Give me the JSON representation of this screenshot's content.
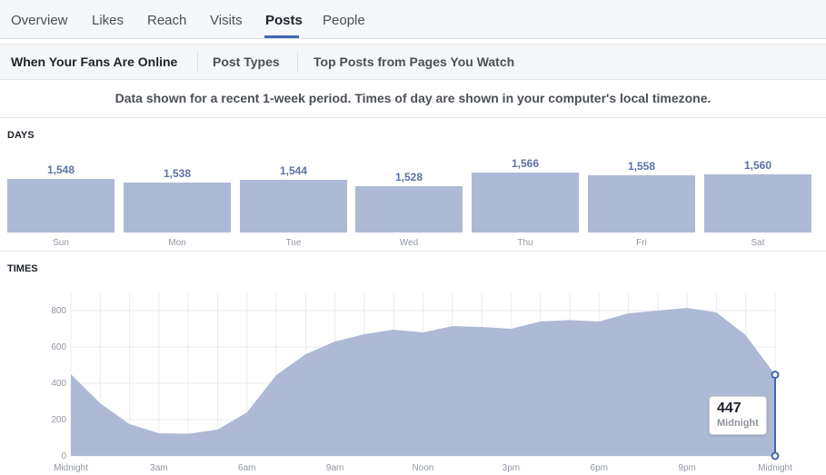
{
  "nav": {
    "tabs": [
      {
        "label": "Overview",
        "active": false
      },
      {
        "label": "Likes",
        "active": false
      },
      {
        "label": "Reach",
        "active": false
      },
      {
        "label": "Visits",
        "active": false
      },
      {
        "label": "Posts",
        "active": true
      },
      {
        "label": "People",
        "active": false
      }
    ]
  },
  "subnav": {
    "tabs": [
      {
        "label": "When Your Fans Are Online",
        "active": true
      },
      {
        "label": "Post Types",
        "active": false
      },
      {
        "label": "Top Posts from Pages You Watch",
        "active": false
      }
    ]
  },
  "notice": "Data shown for a recent 1-week period. Times of day are shown in your computer's local timezone.",
  "days_section": {
    "label": "DAYS"
  },
  "times_section": {
    "label": "TIMES"
  },
  "tooltip": {
    "value": "447",
    "label": "Midnight"
  },
  "colors": {
    "bar": "#aeb9d5",
    "area": "#aeb9d5",
    "accent": "#4267b2",
    "value_text": "#5b72a6"
  },
  "chart_data": [
    {
      "type": "bar",
      "categories": [
        "Sun",
        "Mon",
        "Tue",
        "Wed",
        "Thu",
        "Fri",
        "Sat"
      ],
      "values": [
        1548,
        1538,
        1544,
        1528,
        1566,
        1558,
        1560
      ]
    },
    {
      "type": "area",
      "x_tick_labels": [
        "Midnight",
        "3am",
        "6am",
        "9am",
        "Noon",
        "3pm",
        "6pm",
        "9pm",
        "Midnight"
      ],
      "x_hours": [
        0,
        1,
        2,
        3,
        4,
        5,
        6,
        7,
        8,
        9,
        10,
        11,
        12,
        13,
        14,
        15,
        16,
        17,
        18,
        19,
        20,
        21,
        22,
        23,
        24
      ],
      "values": [
        450,
        290,
        175,
        125,
        122,
        145,
        240,
        445,
        560,
        630,
        670,
        695,
        680,
        715,
        710,
        700,
        740,
        748,
        740,
        785,
        800,
        815,
        790,
        665,
        447
      ],
      "ylim": [
        0,
        900
      ],
      "y_ticks": [
        0,
        200,
        400,
        600,
        800
      ],
      "grid": true,
      "highlight": {
        "x": 24,
        "value": 447
      }
    }
  ]
}
